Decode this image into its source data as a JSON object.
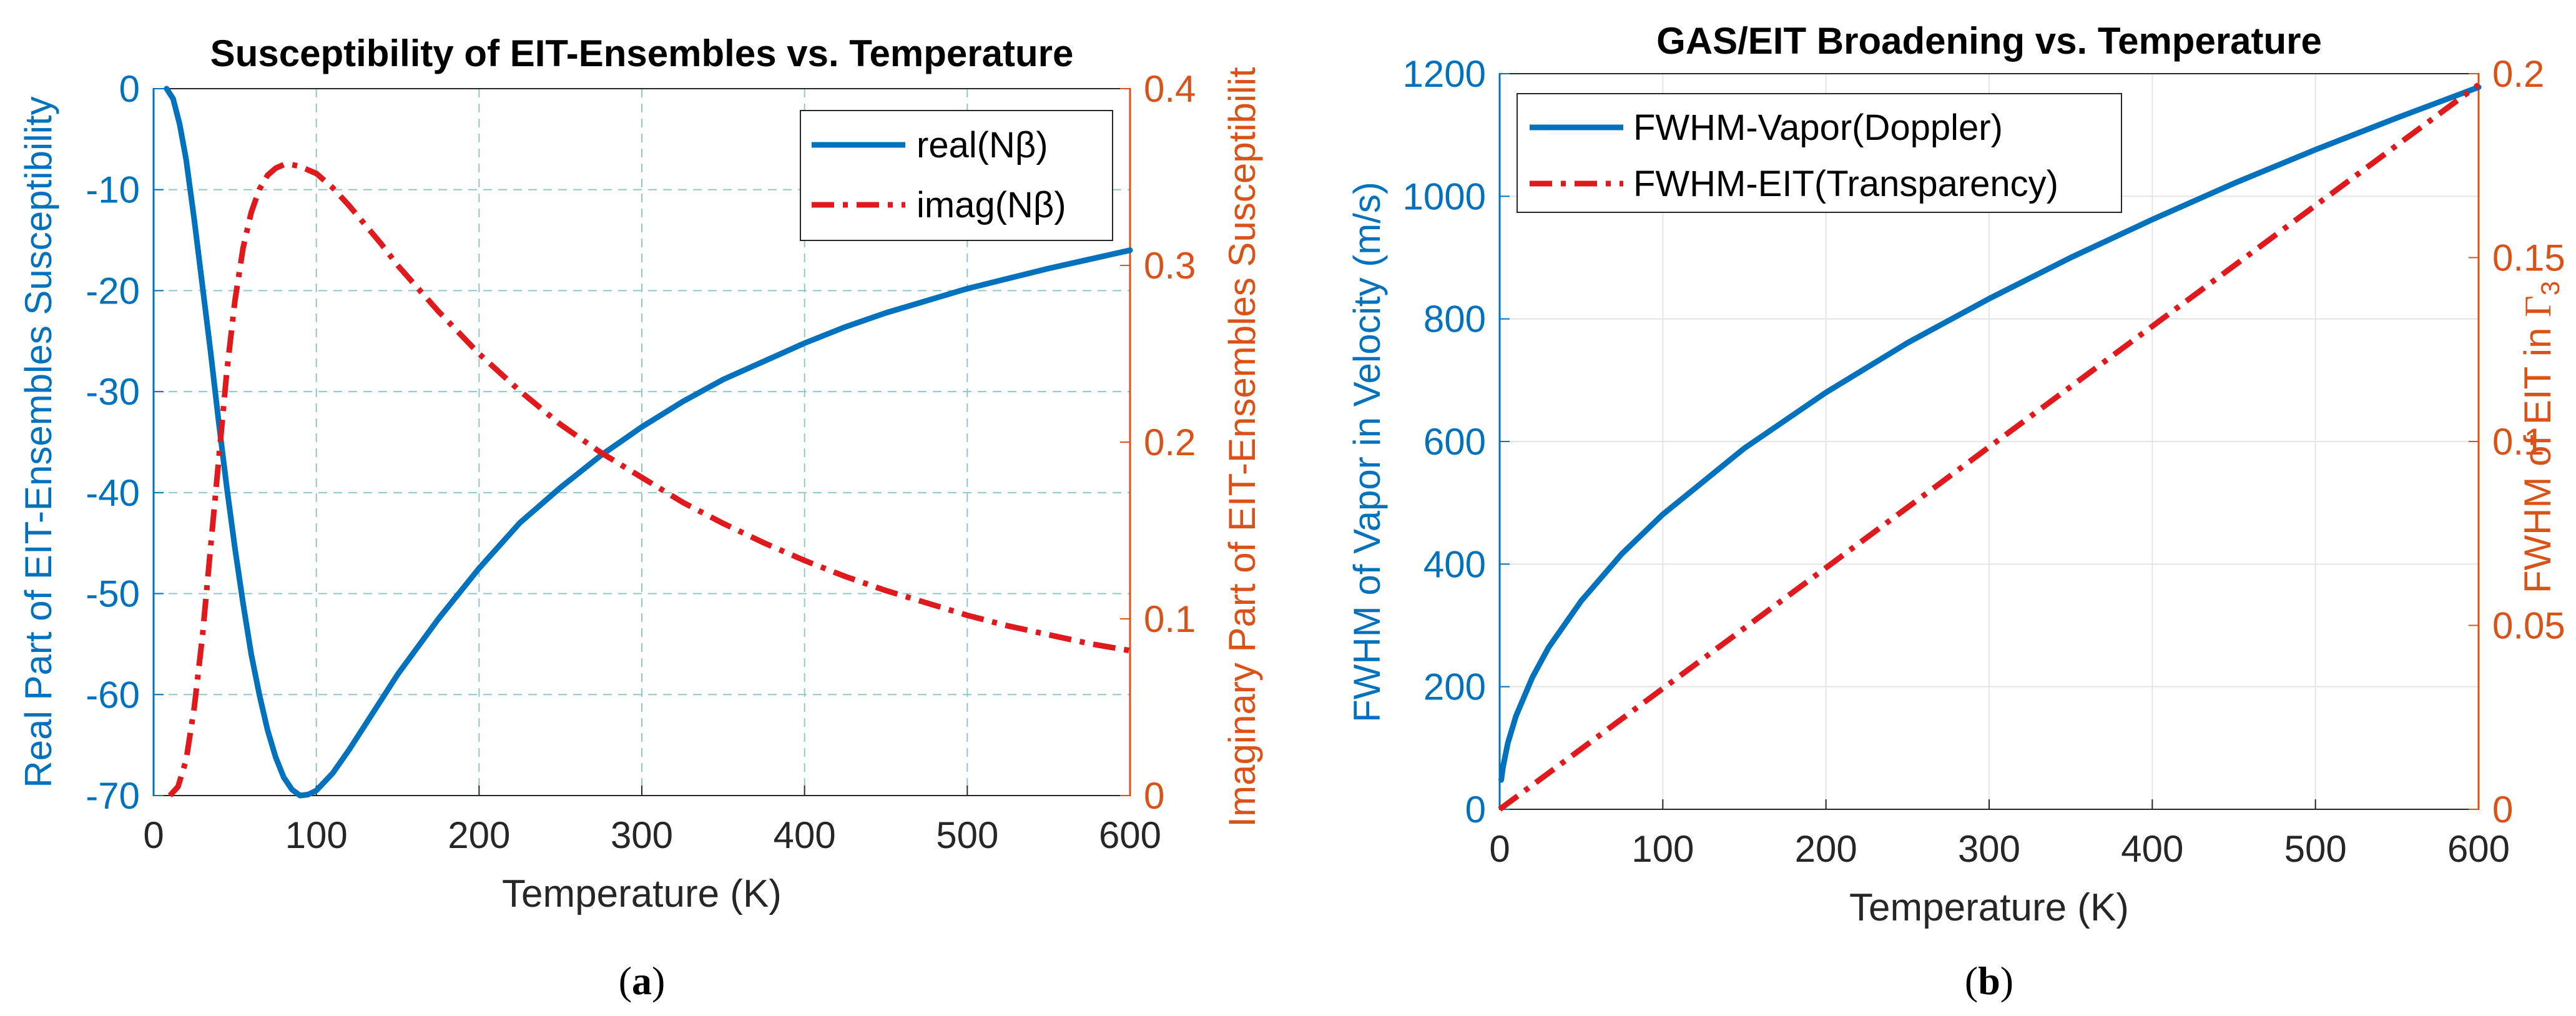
{
  "colors": {
    "blue": "#0072BD",
    "orange": "#D95319",
    "red": "#E0191C",
    "grid_dash": "#8FC7C7",
    "grid_solid": "#E4E4E4",
    "axis": "#262626"
  },
  "chart_data": [
    {
      "type": "line",
      "panel_caption": "(a)",
      "caption_letter": "a",
      "title": "Susceptibility of EIT-Ensembles vs. Temperature",
      "xlabel": "Temperature (K)",
      "ylabel_left": "Real Part of EIT-Ensembles Susceptibility",
      "ylabel_right": "Imaginary Part of EIT-Ensembles Susceptibilit",
      "xlim": [
        0,
        600
      ],
      "ylim_left": [
        -70,
        0
      ],
      "ylim_right": [
        0,
        0.4
      ],
      "xticks": [
        0,
        100,
        200,
        300,
        400,
        500,
        600
      ],
      "xtick_labels": [
        "0",
        "100",
        "200",
        "300",
        "400",
        "500",
        "600"
      ],
      "yticks_left": [
        0,
        -10,
        -20,
        -30,
        -40,
        -50,
        -60,
        -70
      ],
      "ytick_labels_left": [
        "0",
        "-10",
        "-20",
        "-30",
        "-40",
        "-50",
        "-60",
        "-70"
      ],
      "yticks_right": [
        0,
        0.1,
        0.2,
        0.3,
        0.4
      ],
      "ytick_labels_right": [
        "0",
        "0.1",
        "0.2",
        "0.3",
        "0.4"
      ],
      "grid": "dashed",
      "legend_position": "top-right",
      "legend": [
        "real(Nβ)",
        "imag(Nβ)"
      ],
      "series": [
        {
          "name": "real(Nβ)",
          "axis": "left",
          "style": "solid",
          "x": [
            8,
            12,
            16,
            20,
            25,
            30,
            35,
            40,
            45,
            50,
            55,
            60,
            65,
            70,
            75,
            80,
            85,
            90,
            95,
            100,
            110,
            120,
            130,
            140,
            150,
            175,
            200,
            225,
            250,
            275,
            300,
            325,
            350,
            375,
            400,
            425,
            450,
            475,
            500,
            525,
            550,
            575,
            600
          ],
          "y": [
            0,
            -1,
            -3.5,
            -7,
            -13,
            -19.5,
            -26,
            -33,
            -39.5,
            -45.5,
            -51,
            -56,
            -60,
            -63.5,
            -66.2,
            -68.2,
            -69.4,
            -70,
            -69.9,
            -69.5,
            -67.8,
            -65.5,
            -63,
            -60.5,
            -58,
            -52.5,
            -47.5,
            -43,
            -39.5,
            -36.3,
            -33.5,
            -31,
            -28.8,
            -27,
            -25.2,
            -23.6,
            -22.2,
            -21,
            -19.8,
            -18.8,
            -17.8,
            -16.9,
            -16
          ]
        },
        {
          "name": "imag(Nβ)",
          "axis": "right",
          "style": "dash-dot",
          "x": [
            10,
            15,
            20,
            25,
            30,
            35,
            40,
            45,
            50,
            55,
            60,
            65,
            70,
            75,
            80,
            85,
            90,
            95,
            100,
            110,
            120,
            130,
            140,
            150,
            175,
            200,
            225,
            250,
            275,
            300,
            325,
            350,
            375,
            400,
            425,
            450,
            475,
            500,
            525,
            550,
            575,
            600
          ],
          "y": [
            0,
            0.005,
            0.02,
            0.05,
            0.09,
            0.14,
            0.19,
            0.24,
            0.28,
            0.31,
            0.33,
            0.343,
            0.351,
            0.355,
            0.357,
            0.357,
            0.356,
            0.354,
            0.352,
            0.344,
            0.334,
            0.323,
            0.312,
            0.3,
            0.274,
            0.25,
            0.229,
            0.21,
            0.194,
            0.18,
            0.166,
            0.154,
            0.143,
            0.133,
            0.124,
            0.116,
            0.109,
            0.102,
            0.096,
            0.091,
            0.086,
            0.082
          ]
        }
      ]
    },
    {
      "type": "line",
      "panel_caption": "(b)",
      "caption_letter": "b",
      "title": "GAS/EIT Broadening vs. Temperature",
      "xlabel": "Temperature (K)",
      "ylabel_left": "FWHM of Vapor in Velocity (m/s)",
      "ylabel_right_main": "FWHM of EIT in ",
      "ylabel_right_symbol": "Γ",
      "ylabel_right_subscript": "3",
      "xlim": [
        0,
        600
      ],
      "ylim_left": [
        0,
        1200
      ],
      "ylim_right": [
        0,
        0.2
      ],
      "xticks": [
        0,
        100,
        200,
        300,
        400,
        500,
        600
      ],
      "xtick_labels": [
        "0",
        "100",
        "200",
        "300",
        "400",
        "500",
        "600"
      ],
      "yticks_left": [
        0,
        200,
        400,
        600,
        800,
        1000,
        1200
      ],
      "ytick_labels_left": [
        "0",
        "200",
        "400",
        "600",
        "800",
        "1000",
        "1200"
      ],
      "yticks_right": [
        0,
        0.05,
        0.1,
        0.15,
        0.2
      ],
      "ytick_labels_right": [
        "0",
        "0.05",
        "0.1",
        "0.15",
        "0.2"
      ],
      "grid": "solid",
      "legend_position": "top-left",
      "legend": [
        "FWHM-Vapor(Doppler)",
        "FWHM-EIT(Transparency)"
      ],
      "series": [
        {
          "name": "FWHM-Vapor(Doppler)",
          "axis": "left",
          "style": "solid",
          "x": [
            1,
            2,
            5,
            10,
            20,
            30,
            50,
            75,
            100,
            150,
            200,
            250,
            300,
            350,
            400,
            450,
            500,
            550,
            600
          ],
          "y": [
            48,
            68,
            108,
            152,
            215,
            264,
            340,
            417,
            481,
            589,
            680,
            761,
            833,
            900,
            962,
            1021,
            1076,
            1128,
            1178
          ]
        },
        {
          "name": "FWHM-EIT(Transparency)",
          "axis": "right",
          "style": "dash-dot",
          "x": [
            0,
            600
          ],
          "y": [
            0,
            0.197
          ]
        }
      ]
    }
  ]
}
